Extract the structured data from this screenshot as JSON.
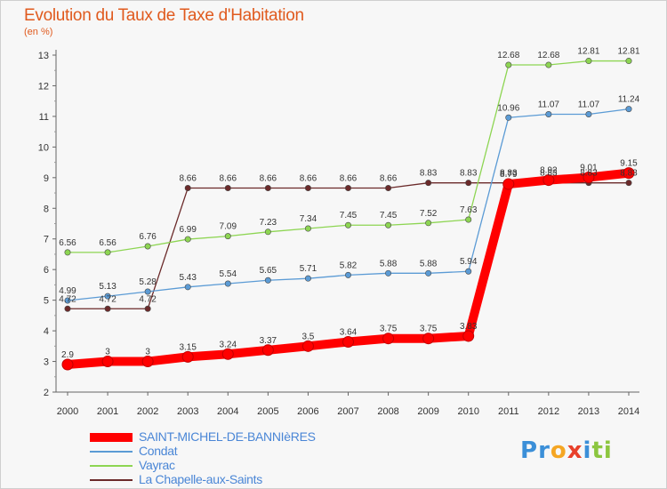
{
  "chart_data": {
    "type": "line",
    "title": "Evolution du Taux de Taxe d'Habitation",
    "subtitle": "(en %)",
    "x": [
      "2000",
      "2001",
      "2002",
      "2003",
      "2004",
      "2005",
      "2006",
      "2007",
      "2008",
      "2009",
      "2010",
      "2011",
      "2012",
      "2013",
      "2014"
    ],
    "ylim": [
      2,
      13
    ],
    "yticks": [
      2,
      3,
      4,
      5,
      6,
      7,
      8,
      9,
      10,
      11,
      12,
      13
    ],
    "grid": false,
    "legend_position": "bottom-left",
    "series": [
      {
        "name": "SAINT-MICHEL-DE-BANNIèRES",
        "color": "#ff0000",
        "values": [
          2.9,
          3,
          3,
          3.15,
          3.24,
          3.37,
          3.5,
          3.64,
          3.75,
          3.75,
          3.83,
          8.79,
          8.92,
          9.01,
          9.15
        ]
      },
      {
        "name": "Condat",
        "color": "#5b9bd5",
        "values": [
          4.99,
          5.13,
          5.28,
          5.43,
          5.54,
          5.65,
          5.71,
          5.82,
          5.88,
          5.88,
          5.94,
          10.96,
          11.07,
          11.07,
          11.24
        ]
      },
      {
        "name": "Vayrac",
        "color": "#8dd552",
        "values": [
          6.56,
          6.56,
          6.76,
          6.99,
          7.09,
          7.23,
          7.34,
          7.45,
          7.45,
          7.52,
          7.63,
          12.68,
          12.68,
          12.81,
          12.81
        ]
      },
      {
        "name": "La Chapelle-aux-Saints",
        "color": "#6b2a2a",
        "values": [
          4.72,
          4.72,
          4.72,
          8.66,
          8.66,
          8.66,
          8.66,
          8.66,
          8.66,
          8.83,
          8.83,
          8.83,
          8.83,
          8.83,
          8.83
        ]
      }
    ]
  },
  "brand": {
    "letters": [
      {
        "char": "P",
        "color": "#3b8fd8"
      },
      {
        "char": "r",
        "color": "#3b8fd8"
      },
      {
        "char": "o",
        "color": "#f5a623"
      },
      {
        "char": "x",
        "color": "#e8402a"
      },
      {
        "char": "i",
        "color": "#3b8fd8"
      },
      {
        "char": "t",
        "color": "#8cc63f"
      },
      {
        "char": "i",
        "color": "#8cc63f"
      }
    ]
  }
}
